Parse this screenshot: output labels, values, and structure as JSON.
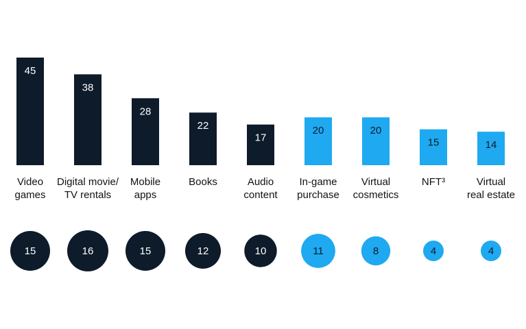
{
  "chart_data": {
    "type": "bar",
    "categories": [
      [
        "Video",
        "games"
      ],
      [
        "Digital movie/",
        "TV rentals"
      ],
      [
        "Mobile",
        "apps"
      ],
      [
        "Books"
      ],
      [
        "Audio",
        "content"
      ],
      [
        "In-game",
        "purchase"
      ],
      [
        "Virtual",
        "cosmetics"
      ],
      [
        "NFT³"
      ],
      [
        "Virtual",
        "real estate"
      ]
    ],
    "values": [
      45,
      38,
      28,
      22,
      17,
      20,
      20,
      15,
      14
    ],
    "bubble_values": [
      15,
      16,
      15,
      12,
      10,
      11,
      8,
      4,
      4
    ],
    "groups": [
      "dark",
      "dark",
      "dark",
      "dark",
      "dark",
      "light",
      "light",
      "light",
      "light"
    ],
    "colors": {
      "dark": "#0d1b2a",
      "light": "#1fa9f0",
      "label_on_dark": "#ffffff",
      "label_on_light": "#0d1b2a"
    }
  }
}
